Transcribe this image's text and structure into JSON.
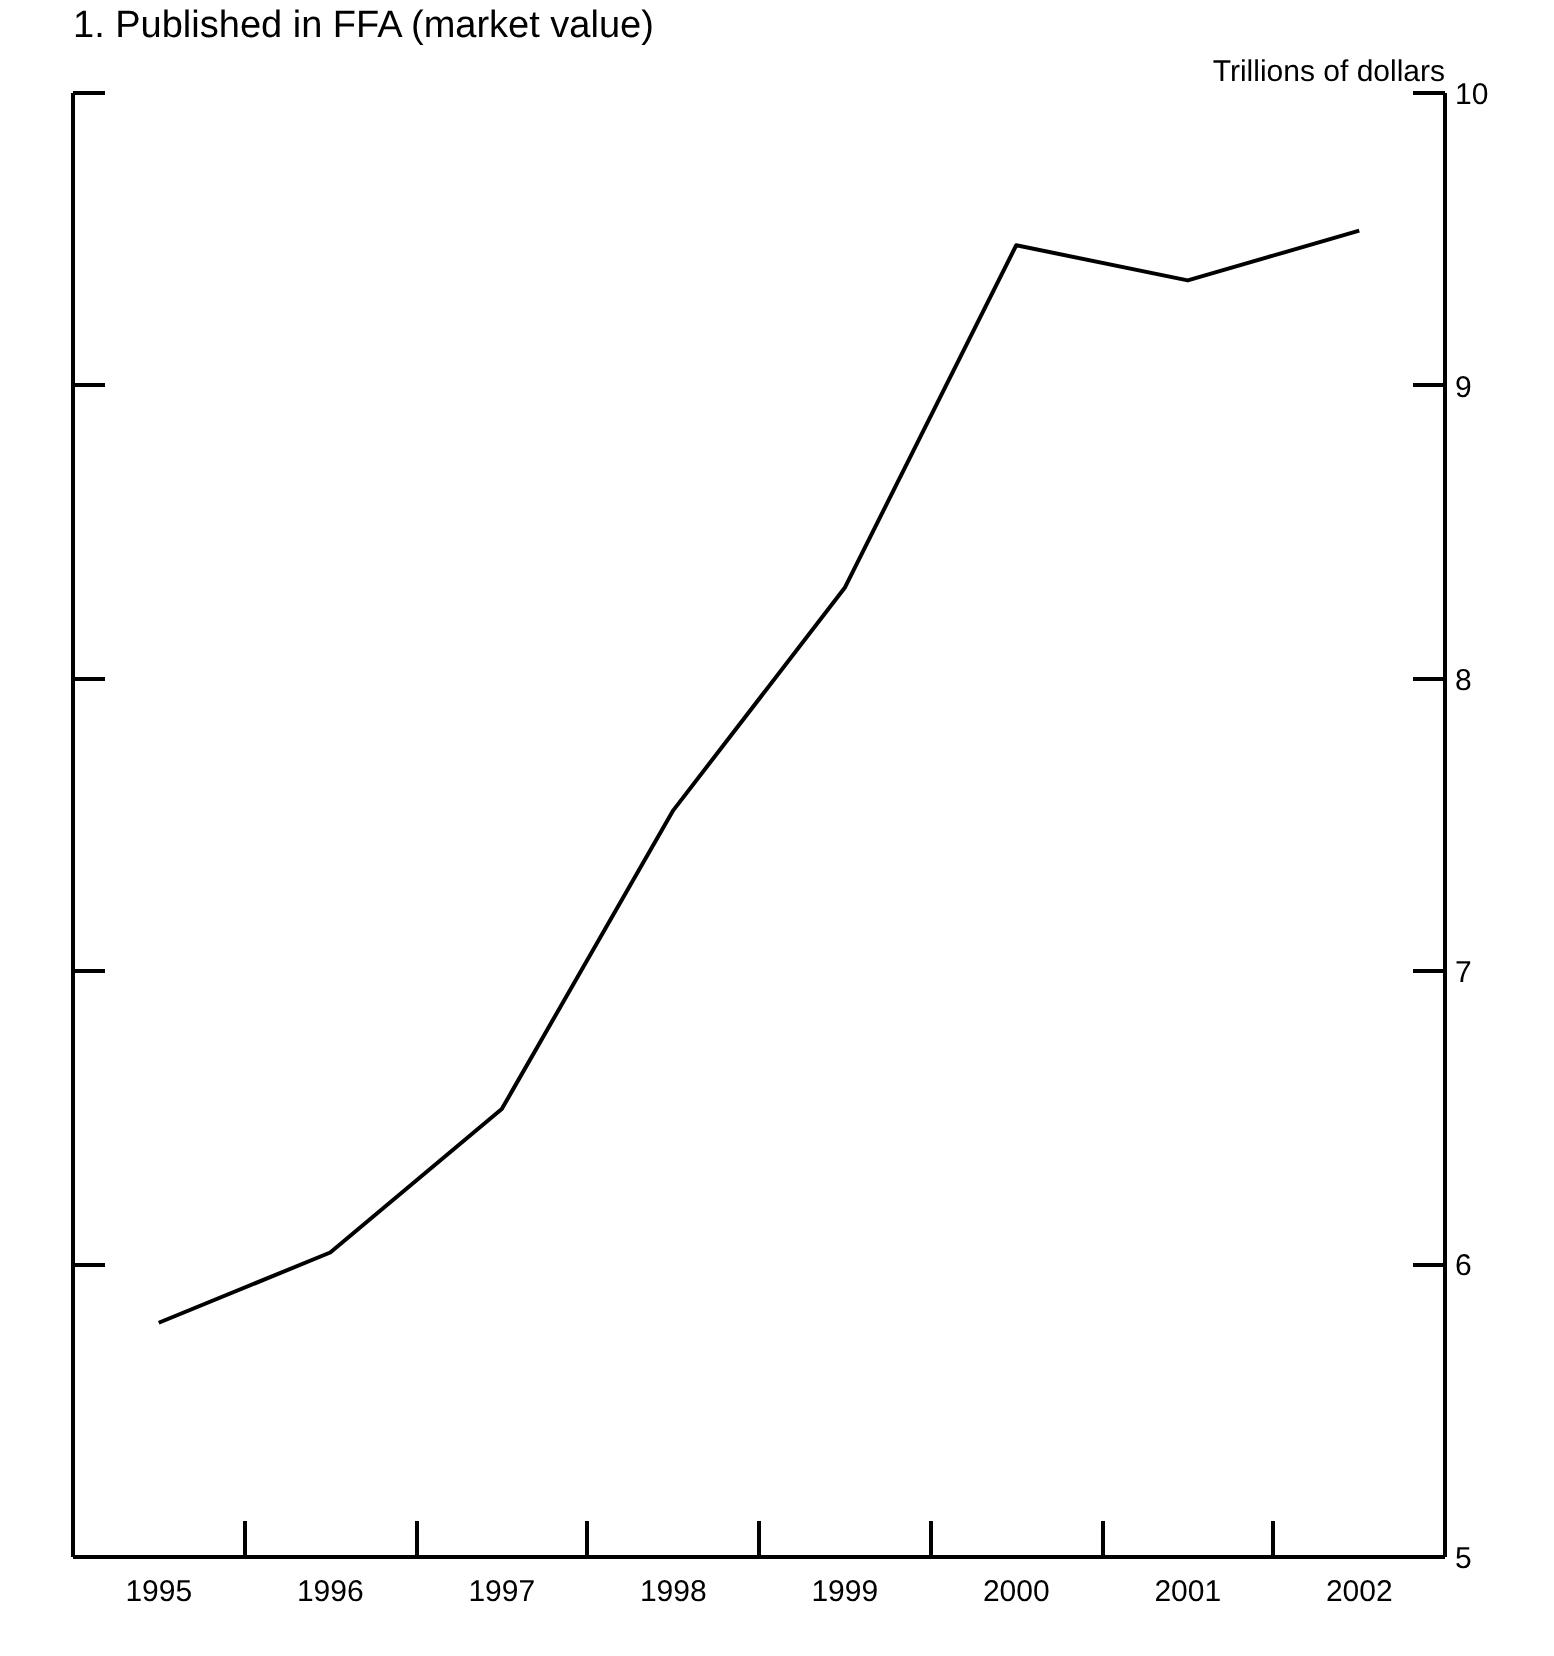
{
  "chart_data": {
    "type": "line",
    "title": "1. Published in FFA (market value)",
    "ylabel": "Trillions of dollars",
    "categories": [
      "1995",
      "1996",
      "1997",
      "1998",
      "1999",
      "2000",
      "2001",
      "2002"
    ],
    "series": [
      {
        "color": "#000000",
        "values": [
          5.8,
          6.04,
          6.53,
          7.55,
          8.31,
          9.48,
          9.36,
          9.53
        ]
      }
    ],
    "ylim": [
      5,
      10
    ],
    "yticks": [
      5,
      6,
      7,
      8,
      9,
      10
    ],
    "grid": false,
    "marker": "none",
    "line_style": "solid"
  }
}
